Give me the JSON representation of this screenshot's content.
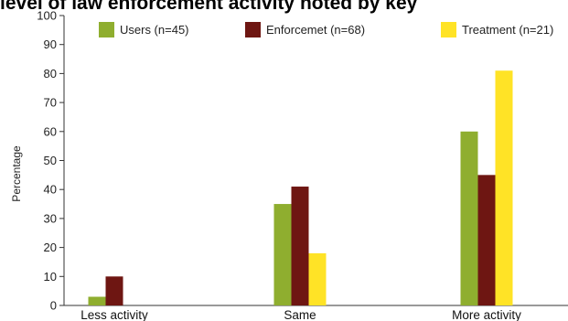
{
  "chart_data": {
    "type": "bar",
    "title": "level of law enforcement activity noted by key",
    "ylabel": "Percentage",
    "xlabel": "",
    "ylim": [
      0,
      100
    ],
    "yticks": [
      0,
      10,
      20,
      30,
      40,
      50,
      60,
      70,
      80,
      90,
      100
    ],
    "grid": false,
    "legend_position": "top",
    "categories": [
      "Less activity",
      "Same",
      "More activity"
    ],
    "series": [
      {
        "name": "Users (n=45)",
        "color": "#8fae2f",
        "values": [
          3,
          35,
          60
        ]
      },
      {
        "name": "Enforcemet (n=68)",
        "color": "#6e1612",
        "values": [
          10,
          41,
          45
        ]
      },
      {
        "name": "Treatment (n=21)",
        "color": "#ffe326",
        "values": [
          0,
          18,
          81
        ]
      }
    ]
  }
}
